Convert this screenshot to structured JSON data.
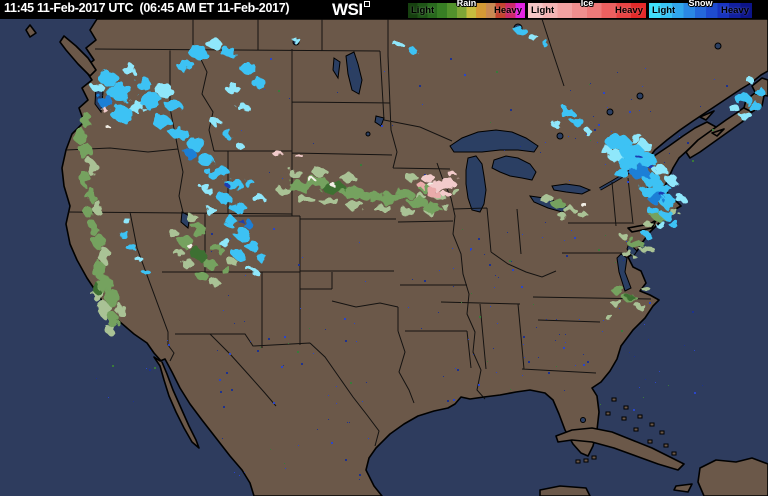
{
  "header": {
    "timestamp": "11:45 11-Feb-2017 UTC  (06:45 AM ET 11-Feb-2017)",
    "logo": "WSI",
    "background": "#000000",
    "legend": [
      {
        "name": "Rain",
        "light": "Light",
        "heavy": "Heavy",
        "stops": [
          "#16400f",
          "#1e5416",
          "#28691d",
          "#377e24",
          "#52922c",
          "#7ea636",
          "#c6bc3e",
          "#d49a35",
          "#c98a52",
          "#c44430",
          "#cc2a6a",
          "#e222e2"
        ]
      },
      {
        "name": "Ice",
        "light": "Light",
        "heavy": "Heavy",
        "stops": [
          "#f6c6c6",
          "#f4b4b4",
          "#f2a2a2",
          "#f08e8e",
          "#ee7a7a",
          "#ec6060",
          "#e84444",
          "#e42a2a"
        ]
      },
      {
        "name": "Snow",
        "light": "Light",
        "heavy": "Heavy",
        "stops": [
          "#3ee0fa",
          "#38c4f4",
          "#30a6ec",
          "#2a88e4",
          "#2468da",
          "#1e4cd0",
          "#1834c0",
          "#1220a0",
          "#0c148a"
        ]
      }
    ]
  },
  "map": {
    "ocean_color": "#2e3c5e",
    "land_color": "#6b5849",
    "lake_color": "#2b3f63",
    "border_color": "#000000",
    "precip_colors": {
      "s1": "#8fe7fb",
      "s2": "#3cc2f4",
      "s3": "#1f7fd6",
      "s4": "#1d3db2",
      "r1": "#a9c295",
      "r2": "#74a25e",
      "r3": "#3e7030",
      "p": "#f2cbcb",
      "p2": "#eaabab",
      "w": "#f2efe6"
    },
    "noise_colors": [
      "#2b46c8",
      "#1e328e",
      "#3a7a3a"
    ],
    "blobs": [
      [
        108,
        78,
        10,
        7,
        "s2"
      ],
      [
        120,
        92,
        13,
        9,
        "s2"
      ],
      [
        106,
        102,
        8,
        6,
        "s3"
      ],
      [
        122,
        114,
        11,
        8,
        "s2"
      ],
      [
        136,
        106,
        9,
        6,
        "s1"
      ],
      [
        98,
        88,
        6,
        5,
        "s1"
      ],
      [
        150,
        100,
        11,
        8,
        "s2"
      ],
      [
        164,
        90,
        9,
        6,
        "s1"
      ],
      [
        174,
        106,
        8,
        6,
        "s2"
      ],
      [
        186,
        66,
        9,
        6,
        "s2"
      ],
      [
        198,
        52,
        10,
        6,
        "s2"
      ],
      [
        214,
        44,
        8,
        5,
        "s1"
      ],
      [
        228,
        52,
        8,
        5,
        "s2"
      ],
      [
        162,
        122,
        9,
        7,
        "s2"
      ],
      [
        180,
        134,
        9,
        6,
        "s2"
      ],
      [
        196,
        144,
        9,
        7,
        "s2"
      ],
      [
        206,
        160,
        8,
        6,
        "s2"
      ],
      [
        214,
        174,
        7,
        5,
        "s2"
      ],
      [
        190,
        154,
        6,
        5,
        "s3"
      ],
      [
        232,
        88,
        7,
        5,
        "s1"
      ],
      [
        248,
        68,
        8,
        6,
        "s2"
      ],
      [
        258,
        82,
        7,
        5,
        "s2"
      ],
      [
        242,
        106,
        6,
        4,
        "s1"
      ],
      [
        144,
        84,
        8,
        6,
        "s2"
      ],
      [
        130,
        70,
        7,
        5,
        "s1"
      ],
      [
        216,
        122,
        5,
        4,
        "s1"
      ],
      [
        228,
        134,
        5,
        4,
        "s2"
      ],
      [
        240,
        146,
        4,
        3,
        "s1"
      ],
      [
        124,
        234,
        5,
        4,
        "s2"
      ],
      [
        132,
        248,
        5,
        4,
        "s2"
      ],
      [
        140,
        260,
        4,
        3,
        "s1"
      ],
      [
        146,
        272,
        4,
        3,
        "s2"
      ],
      [
        128,
        222,
        4,
        3,
        "s1"
      ],
      [
        220,
        172,
        9,
        6,
        "s2"
      ],
      [
        234,
        184,
        8,
        6,
        "s2"
      ],
      [
        224,
        198,
        7,
        5,
        "s2"
      ],
      [
        238,
        208,
        8,
        6,
        "s2"
      ],
      [
        230,
        222,
        7,
        5,
        "s2"
      ],
      [
        242,
        234,
        8,
        6,
        "s2"
      ],
      [
        252,
        246,
        7,
        5,
        "s2"
      ],
      [
        238,
        254,
        6,
        5,
        "s2"
      ],
      [
        224,
        242,
        6,
        4,
        "s1"
      ],
      [
        248,
        224,
        5,
        4,
        "s3"
      ],
      [
        258,
        198,
        6,
        4,
        "s1"
      ],
      [
        250,
        184,
        5,
        4,
        "s2"
      ],
      [
        212,
        212,
        6,
        4,
        "s1"
      ],
      [
        262,
        258,
        5,
        4,
        "s2"
      ],
      [
        252,
        270,
        5,
        3,
        "s1"
      ],
      [
        206,
        188,
        5,
        4,
        "s1"
      ],
      [
        240,
        220,
        3,
        2,
        "s4"
      ],
      [
        228,
        186,
        2,
        2,
        "s4"
      ],
      [
        398,
        44,
        5,
        3,
        "s1"
      ],
      [
        414,
        52,
        4,
        3,
        "s2"
      ],
      [
        520,
        30,
        6,
        4,
        "s2"
      ],
      [
        534,
        38,
        5,
        3,
        "s1"
      ],
      [
        546,
        44,
        4,
        3,
        "s2"
      ],
      [
        296,
        40,
        4,
        3,
        "s1"
      ],
      [
        566,
        112,
        7,
        5,
        "s2"
      ],
      [
        578,
        122,
        6,
        4,
        "s2"
      ],
      [
        556,
        124,
        5,
        4,
        "s1"
      ],
      [
        588,
        132,
        4,
        3,
        "s1"
      ],
      [
        618,
        142,
        12,
        8,
        "s2"
      ],
      [
        632,
        152,
        12,
        8,
        "s2"
      ],
      [
        646,
        160,
        11,
        8,
        "s2"
      ],
      [
        640,
        172,
        10,
        7,
        "s3"
      ],
      [
        652,
        180,
        9,
        7,
        "s2"
      ],
      [
        662,
        190,
        9,
        7,
        "s2"
      ],
      [
        668,
        202,
        8,
        6,
        "s2"
      ],
      [
        656,
        198,
        8,
        6,
        "s3"
      ],
      [
        628,
        164,
        9,
        7,
        "s2"
      ],
      [
        616,
        156,
        8,
        6,
        "s1"
      ],
      [
        644,
        146,
        8,
        5,
        "s1"
      ],
      [
        660,
        170,
        7,
        5,
        "s1"
      ],
      [
        672,
        180,
        6,
        5,
        "s1"
      ],
      [
        648,
        192,
        7,
        5,
        "s2"
      ],
      [
        636,
        138,
        7,
        4,
        "s1"
      ],
      [
        606,
        150,
        6,
        4,
        "s1"
      ],
      [
        622,
        174,
        7,
        5,
        "s2"
      ],
      [
        666,
        214,
        6,
        5,
        "s2"
      ],
      [
        674,
        224,
        5,
        4,
        "s2"
      ],
      [
        660,
        224,
        5,
        4,
        "s1"
      ],
      [
        680,
        198,
        5,
        4,
        "s1"
      ],
      [
        646,
        234,
        4,
        3,
        "s2"
      ],
      [
        654,
        212,
        6,
        4,
        "s2"
      ],
      [
        652,
        168,
        3,
        2,
        "s4"
      ],
      [
        640,
        158,
        3,
        2,
        "s4"
      ],
      [
        664,
        196,
        3,
        2,
        "s4"
      ],
      [
        742,
        98,
        8,
        6,
        "s2"
      ],
      [
        754,
        106,
        7,
        5,
        "s2"
      ],
      [
        746,
        116,
        6,
        5,
        "s1"
      ],
      [
        760,
        92,
        5,
        4,
        "s2"
      ],
      [
        734,
        108,
        5,
        4,
        "s1"
      ],
      [
        750,
        80,
        4,
        3,
        "s1"
      ],
      [
        86,
        120,
        5,
        8,
        "r2"
      ],
      [
        80,
        136,
        5,
        9,
        "r2"
      ],
      [
        86,
        152,
        6,
        9,
        "r2"
      ],
      [
        92,
        168,
        5,
        8,
        "r1"
      ],
      [
        84,
        178,
        5,
        8,
        "r2"
      ],
      [
        90,
        194,
        5,
        7,
        "r2"
      ],
      [
        96,
        206,
        5,
        7,
        "r1"
      ],
      [
        88,
        212,
        4,
        6,
        "r2"
      ],
      [
        93,
        228,
        5,
        7,
        "r2"
      ],
      [
        99,
        242,
        6,
        8,
        "r2"
      ],
      [
        105,
        256,
        6,
        8,
        "r1"
      ],
      [
        99,
        270,
        6,
        9,
        "r2"
      ],
      [
        105,
        284,
        7,
        9,
        "r2"
      ],
      [
        113,
        298,
        7,
        9,
        "r2"
      ],
      [
        105,
        310,
        7,
        8,
        "r1"
      ],
      [
        113,
        320,
        6,
        7,
        "r2"
      ],
      [
        121,
        310,
        5,
        6,
        "r1"
      ],
      [
        97,
        294,
        5,
        7,
        "r1"
      ],
      [
        110,
        330,
        5,
        5,
        "r1"
      ],
      [
        96,
        288,
        4,
        5,
        "r3"
      ],
      [
        198,
        230,
        8,
        6,
        "r2"
      ],
      [
        186,
        242,
        7,
        6,
        "r2"
      ],
      [
        198,
        254,
        8,
        6,
        "r3"
      ],
      [
        210,
        264,
        7,
        5,
        "r2"
      ],
      [
        188,
        264,
        6,
        5,
        "r1"
      ],
      [
        202,
        276,
        6,
        4,
        "r2"
      ],
      [
        216,
        248,
        6,
        4,
        "r2"
      ],
      [
        178,
        252,
        5,
        4,
        "r1"
      ],
      [
        214,
        282,
        5,
        4,
        "r1"
      ],
      [
        226,
        270,
        5,
        4,
        "r2"
      ],
      [
        192,
        218,
        6,
        4,
        "r1"
      ],
      [
        174,
        234,
        5,
        4,
        "r1"
      ],
      [
        232,
        262,
        5,
        4,
        "r1"
      ],
      [
        202,
        258,
        5,
        4,
        "r3"
      ],
      [
        298,
        186,
        11,
        6,
        "r2"
      ],
      [
        316,
        182,
        12,
        6,
        "r2"
      ],
      [
        334,
        188,
        12,
        6,
        "r3"
      ],
      [
        352,
        192,
        12,
        6,
        "r2"
      ],
      [
        370,
        196,
        11,
        5,
        "r2"
      ],
      [
        388,
        198,
        11,
        5,
        "r2"
      ],
      [
        404,
        194,
        10,
        5,
        "r2"
      ],
      [
        418,
        202,
        10,
        5,
        "r2"
      ],
      [
        432,
        208,
        9,
        5,
        "r2"
      ],
      [
        306,
        200,
        9,
        4,
        "r1"
      ],
      [
        330,
        202,
        10,
        4,
        "r1"
      ],
      [
        356,
        206,
        9,
        4,
        "r1"
      ],
      [
        382,
        208,
        9,
        4,
        "r1"
      ],
      [
        408,
        212,
        8,
        4,
        "r1"
      ],
      [
        296,
        174,
        7,
        4,
        "r1"
      ],
      [
        320,
        172,
        8,
        4,
        "r1"
      ],
      [
        348,
        178,
        8,
        4,
        "r1"
      ],
      [
        440,
        196,
        7,
        4,
        "r1"
      ],
      [
        426,
        188,
        7,
        4,
        "r2"
      ],
      [
        285,
        192,
        7,
        4,
        "r1"
      ],
      [
        336,
        190,
        6,
        3,
        "r3"
      ],
      [
        412,
        178,
        6,
        4,
        "r1"
      ],
      [
        420,
        196,
        5,
        3,
        "r1"
      ],
      [
        456,
        192,
        5,
        3,
        "r1"
      ],
      [
        430,
        212,
        5,
        3,
        "r1"
      ],
      [
        446,
        207,
        4,
        3,
        "r1"
      ],
      [
        546,
        198,
        7,
        4,
        "r1"
      ],
      [
        558,
        204,
        7,
        4,
        "r2"
      ],
      [
        570,
        210,
        6,
        4,
        "r1"
      ],
      [
        582,
        214,
        5,
        3,
        "r1"
      ],
      [
        562,
        216,
        5,
        3,
        "r1"
      ],
      [
        660,
        216,
        9,
        4,
        "r2"
      ],
      [
        672,
        212,
        7,
        3,
        "r1"
      ],
      [
        648,
        224,
        5,
        3,
        "r1"
      ],
      [
        636,
        244,
        8,
        5,
        "r2"
      ],
      [
        648,
        250,
        7,
        4,
        "r1"
      ],
      [
        628,
        254,
        6,
        3,
        "r1"
      ],
      [
        618,
        290,
        7,
        4,
        "r2"
      ],
      [
        630,
        298,
        7,
        4,
        "r2"
      ],
      [
        618,
        304,
        6,
        3,
        "r1"
      ],
      [
        640,
        306,
        5,
        3,
        "r1"
      ],
      [
        608,
        316,
        4,
        3,
        "r1"
      ],
      [
        645,
        288,
        4,
        3,
        "r1"
      ],
      [
        624,
        236,
        4,
        3,
        "r1"
      ],
      [
        630,
        297,
        4,
        3,
        "r3"
      ],
      [
        428,
        178,
        7,
        4,
        "p"
      ],
      [
        438,
        186,
        8,
        5,
        "p"
      ],
      [
        448,
        182,
        6,
        4,
        "p"
      ],
      [
        434,
        194,
        7,
        4,
        "p2"
      ],
      [
        446,
        194,
        5,
        3,
        "p"
      ],
      [
        422,
        186,
        4,
        3,
        "p2"
      ],
      [
        452,
        174,
        4,
        3,
        "p"
      ],
      [
        277,
        153,
        5,
        3,
        "p"
      ],
      [
        300,
        157,
        4,
        2,
        "p"
      ],
      [
        103,
        108,
        3,
        2,
        "p"
      ],
      [
        312,
        180,
        4,
        2,
        "w"
      ],
      [
        332,
        184,
        3,
        2,
        "w"
      ],
      [
        430,
        184,
        3,
        2,
        "w"
      ],
      [
        585,
        206,
        3,
        2,
        "w"
      ],
      [
        108,
        127,
        2,
        2,
        "w"
      ],
      [
        190,
        246,
        3,
        2,
        "w"
      ]
    ]
  }
}
